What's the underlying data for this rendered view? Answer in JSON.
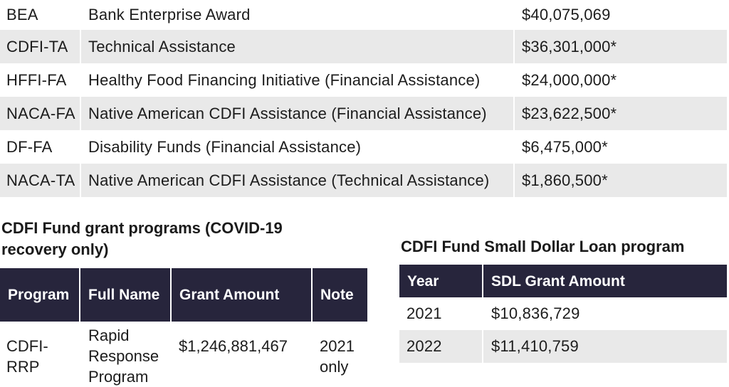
{
  "top_table": {
    "rows": [
      {
        "code": "BEA",
        "name": "Bank Enterprise Award",
        "amount": "$40,075,069"
      },
      {
        "code": "CDFI-TA",
        "name": "Technical Assistance",
        "amount": "$36,301,000*"
      },
      {
        "code": "HFFI-FA",
        "name": "Healthy Food Financing Initiative (Financial Assistance)",
        "amount": "$24,000,000*"
      },
      {
        "code": "NACA-FA",
        "name": "Native American CDFI Assistance (Financial Assistance)",
        "amount": "$23,622,500*"
      },
      {
        "code": "DF-FA",
        "name": "Disability Funds (Financial Assistance)",
        "amount": "$6,475,000*"
      },
      {
        "code": "NACA-TA",
        "name": "Native American CDFI Assistance (Technical Assistance)",
        "amount": "$1,860,500*"
      }
    ]
  },
  "covid_section": {
    "heading": "CDFI Fund grant programs (COVID-19 recovery only)",
    "headers": {
      "program": "Program",
      "full_name": "Full Name",
      "amount": "Grant Amount",
      "note": "Note"
    },
    "rows": [
      {
        "program": "CDFI-RRP",
        "full_name": "Rapid Response Program",
        "amount": "$1,246,881,467",
        "note": "2021 only"
      }
    ]
  },
  "sdl_section": {
    "heading": "CDFI Fund Small Dollar Loan program",
    "headers": {
      "year": "Year",
      "amount": "SDL Grant Amount"
    },
    "rows": [
      {
        "year": "2021",
        "amount": "$10,836,729"
      },
      {
        "year": "2022",
        "amount": "$11,410,759"
      }
    ]
  },
  "colors": {
    "header_bg": "#27253c",
    "stripe_bg": "#e9e9e9"
  }
}
